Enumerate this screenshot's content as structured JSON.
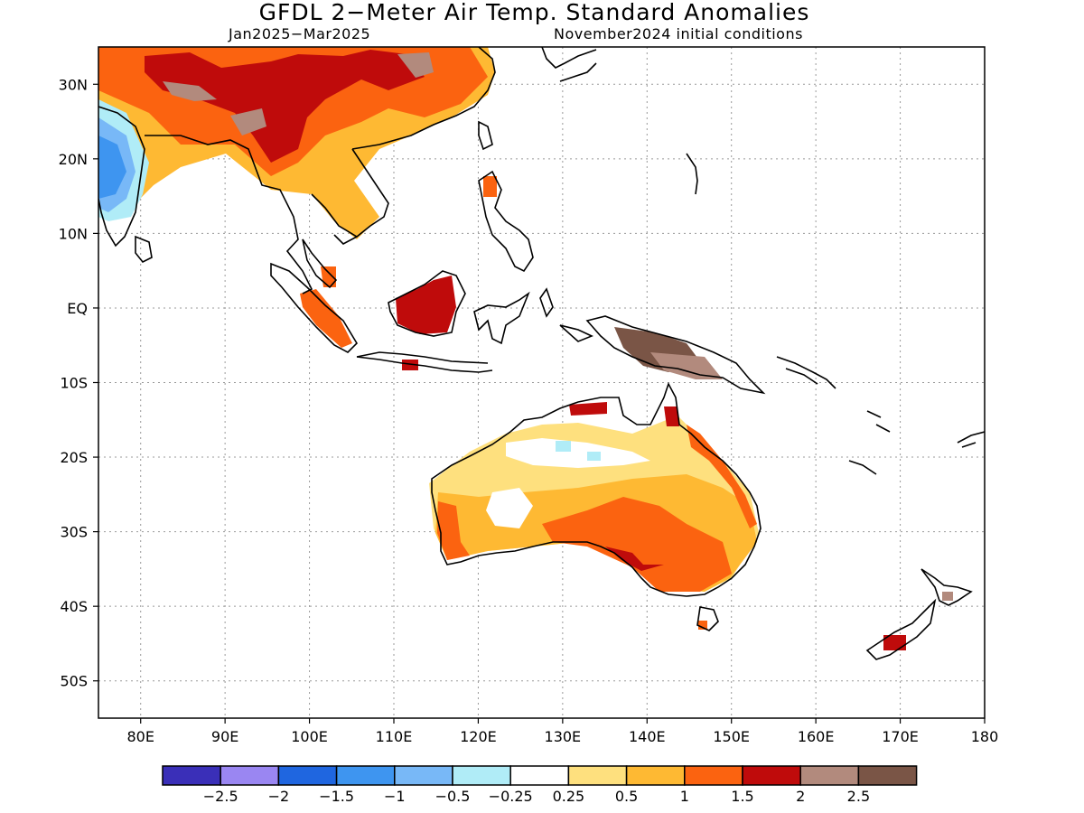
{
  "title": "GFDL 2−Meter Air Temp. Standard Anomalies",
  "subtitle_left": "Jan2025−Mar2025",
  "subtitle_right": "November2024 initial conditions",
  "map": {
    "lon_range": [
      75,
      180
    ],
    "lat_range": [
      -55,
      35
    ],
    "lat_ticks": [
      {
        "value": 30,
        "label": "30N"
      },
      {
        "value": 20,
        "label": "20N"
      },
      {
        "value": 10,
        "label": "10N"
      },
      {
        "value": 0,
        "label": "EQ"
      },
      {
        "value": -10,
        "label": "10S"
      },
      {
        "value": -20,
        "label": "20S"
      },
      {
        "value": -30,
        "label": "30S"
      },
      {
        "value": -40,
        "label": "40S"
      },
      {
        "value": -50,
        "label": "50S"
      }
    ],
    "lon_ticks": [
      {
        "value": 80,
        "label": "80E"
      },
      {
        "value": 90,
        "label": "90E"
      },
      {
        "value": 100,
        "label": "100E"
      },
      {
        "value": 110,
        "label": "110E"
      },
      {
        "value": 120,
        "label": "120E"
      },
      {
        "value": 130,
        "label": "130E"
      },
      {
        "value": 140,
        "label": "140E"
      },
      {
        "value": 150,
        "label": "150E"
      },
      {
        "value": 160,
        "label": "160E"
      },
      {
        "value": 170,
        "label": "170E"
      },
      {
        "value": 180,
        "label": "180"
      }
    ]
  },
  "legend": {
    "colors": [
      "#3a2fb8",
      "#9a86f2",
      "#1f66e0",
      "#3e95f0",
      "#78b8f7",
      "#b0ecf7",
      "#ffffff",
      "#fee07e",
      "#feb933",
      "#fb6310",
      "#bf0b0b",
      "#b28a7d",
      "#7a5546"
    ],
    "labels": [
      "−2.5",
      "−2",
      "−1.5",
      "−1",
      "−0.5",
      "−0.25",
      "0.25",
      "0.5",
      "1",
      "1.5",
      "2",
      "2.5"
    ]
  }
}
